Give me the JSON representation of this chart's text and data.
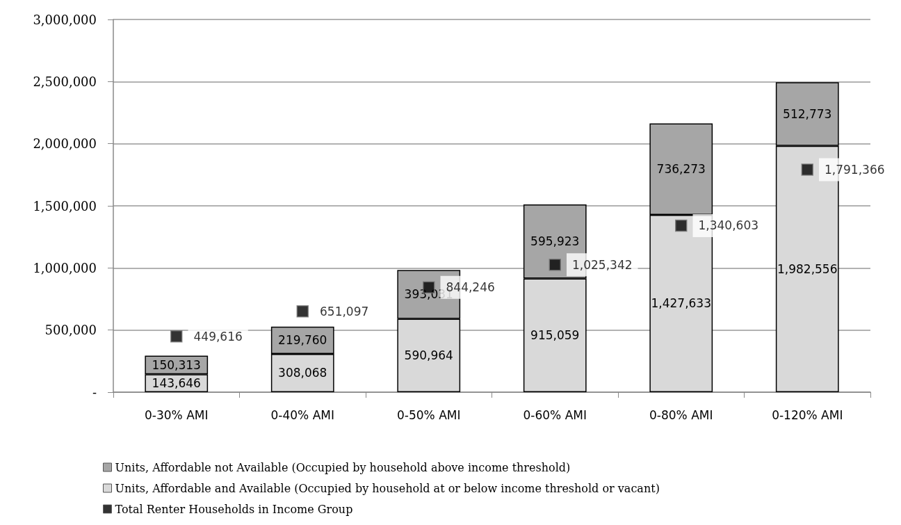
{
  "chart_data": {
    "type": "bar",
    "stacked": true,
    "categories": [
      "0-30% AMI",
      "0-40% AMI",
      "0-50% AMI",
      "0-60% AMI",
      "0-80% AMI",
      "0-120% AMI"
    ],
    "series": [
      {
        "name": "Units, Affordable and Available (Occupied by household at or below income threshold or vacant)",
        "color": "#d9d9d9",
        "values": [
          143646,
          308068,
          590964,
          915059,
          1427633,
          1982556
        ],
        "value_labels": [
          "143,646",
          "308,068",
          "590,964",
          "915,059",
          "1,427,633",
          "1,982,556"
        ]
      },
      {
        "name": "Units, Affordable not Available (Occupied by household above income threshold)",
        "color": "#a6a6a6",
        "values": [
          150313,
          219760,
          393031,
          595923,
          736273,
          512773
        ],
        "value_labels": [
          "150,313",
          "219,760",
          "393,031",
          "595,923",
          "736,273",
          "512,773"
        ]
      },
      {
        "name": "Total Renter Households in Income Group",
        "type": "scatter",
        "marker": "square",
        "color": "#000000",
        "values": [
          449616,
          651097,
          844246,
          1025342,
          1340603,
          1791366
        ],
        "value_labels": [
          "449,616",
          "651,097",
          "844,246",
          "1,025,342",
          "1,340,603",
          "1,791,366"
        ]
      }
    ],
    "ylim": [
      0,
      3000000
    ],
    "yticks": [
      {
        "value": 0,
        "label": "-"
      },
      {
        "value": 500000,
        "label": "500,000"
      },
      {
        "value": 1000000,
        "label": "1,000,000"
      },
      {
        "value": 1500000,
        "label": "1,500,000"
      },
      {
        "value": 2000000,
        "label": "2,000,000"
      },
      {
        "value": 2500000,
        "label": "2,500,000"
      },
      {
        "value": 3000000,
        "label": "3,000,000"
      }
    ],
    "grid": "y",
    "legend": "bottom"
  }
}
